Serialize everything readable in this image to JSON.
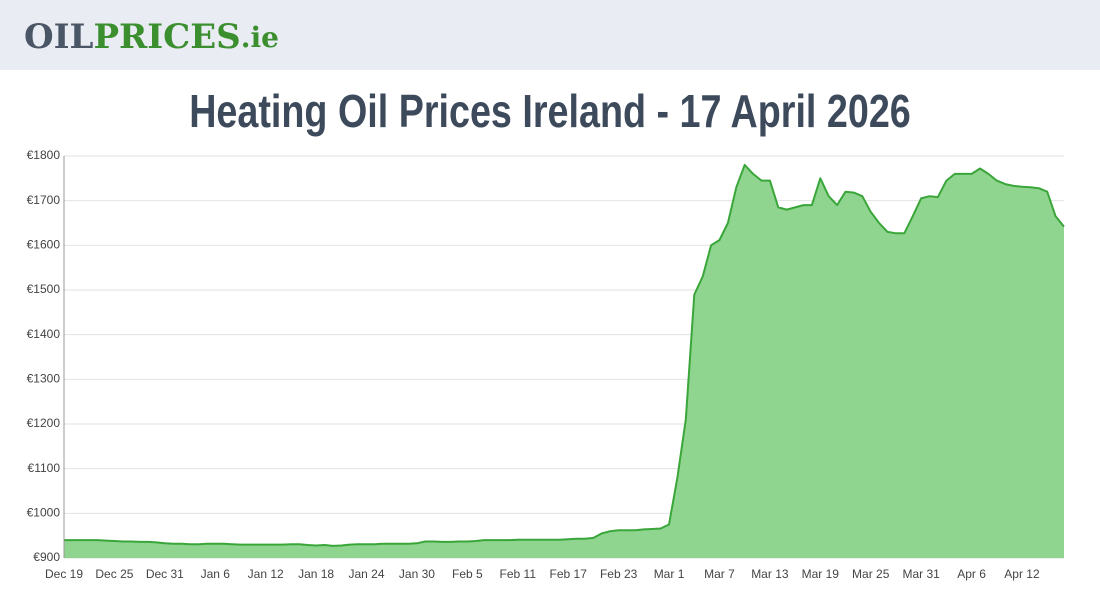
{
  "header": {
    "logo": {
      "part1": "OIL",
      "part2": "PRICES",
      "part3": ".ie"
    }
  },
  "chart_data": {
    "type": "area",
    "title": "Heating Oil Prices Ireland - 17 April 2026",
    "categories": [
      "Dec 19",
      null,
      null,
      null,
      null,
      null,
      "Dec 25",
      null,
      null,
      null,
      null,
      null,
      "Dec 31",
      null,
      null,
      null,
      null,
      null,
      "Jan 6",
      null,
      null,
      null,
      null,
      null,
      "Jan 12",
      null,
      null,
      null,
      null,
      null,
      "Jan 18",
      null,
      null,
      null,
      null,
      null,
      "Jan 24",
      null,
      null,
      null,
      null,
      null,
      "Jan 30",
      null,
      null,
      null,
      null,
      null,
      "Feb 5",
      null,
      null,
      null,
      null,
      null,
      "Feb 11",
      null,
      null,
      null,
      null,
      null,
      "Feb 17",
      null,
      null,
      null,
      null,
      null,
      "Feb 23",
      null,
      null,
      null,
      null,
      null,
      "Mar 1",
      null,
      null,
      null,
      null,
      null,
      "Mar 7",
      null,
      null,
      null,
      null,
      null,
      "Mar 13",
      null,
      null,
      null,
      null,
      null,
      "Mar 19",
      null,
      null,
      null,
      null,
      null,
      "Mar 25",
      null,
      null,
      null,
      null,
      null,
      "Mar 31",
      null,
      null,
      null,
      null,
      null,
      "Apr 6",
      null,
      null,
      null,
      null,
      null,
      "Apr 12",
      null,
      null,
      null,
      null,
      null
    ],
    "values": [
      940,
      940,
      940,
      940,
      940,
      939,
      938,
      937,
      937,
      936,
      936,
      935,
      933,
      932,
      932,
      931,
      931,
      932,
      932,
      932,
      931,
      930,
      930,
      930,
      930,
      930,
      930,
      931,
      931,
      929,
      928,
      929,
      927,
      928,
      930,
      931,
      931,
      931,
      932,
      932,
      932,
      932,
      933,
      937,
      937,
      936,
      936,
      937,
      937,
      938,
      940,
      940,
      940,
      940,
      941,
      941,
      941,
      941,
      941,
      941,
      942,
      943,
      943,
      945,
      955,
      960,
      962,
      962,
      962,
      964,
      965,
      966,
      975,
      1080,
      1210,
      1490,
      1530,
      1600,
      1612,
      1650,
      1730,
      1780,
      1760,
      1745,
      1745,
      1685,
      1680,
      1685,
      1690,
      1690,
      1750,
      1710,
      1690,
      1720,
      1718,
      1710,
      1675,
      1650,
      1630,
      1627,
      1627,
      1665,
      1705,
      1710,
      1708,
      1745,
      1760,
      1760,
      1760,
      1772,
      1760,
      1745,
      1737,
      1733,
      1731,
      1730,
      1728,
      1720,
      1665,
      1642
    ],
    "color": "#3aa63a",
    "fill": "#8fd58f",
    "ylim": [
      900,
      1800
    ],
    "yticks": [
      {
        "value": 900,
        "label": "€900"
      },
      {
        "value": 1000,
        "label": "€1000"
      },
      {
        "value": 1100,
        "label": "€1100"
      },
      {
        "value": 1200,
        "label": "€1200"
      },
      {
        "value": 1300,
        "label": "€1300"
      },
      {
        "value": 1400,
        "label": "€1400"
      },
      {
        "value": 1500,
        "label": "€1500"
      },
      {
        "value": 1600,
        "label": "€1600"
      },
      {
        "value": 1700,
        "label": "€1700"
      },
      {
        "value": 1800,
        "label": "€1800"
      }
    ],
    "grid": true
  }
}
